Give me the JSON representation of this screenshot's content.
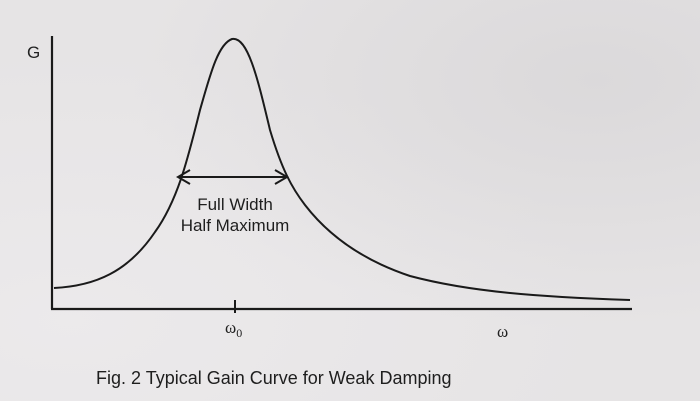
{
  "figure": {
    "y_axis_label": "G",
    "center_tick_symbol": "ω",
    "center_tick_subscript": "0",
    "x_axis_label": "ω",
    "annotation_line1": "Full Width",
    "annotation_line2": "Half Maximum",
    "caption": "Fig. 2  Typical Gain Curve for Weak Damping"
  },
  "colors": {
    "ink": "#1a1a1a",
    "paper": "#e6e4e5"
  }
}
